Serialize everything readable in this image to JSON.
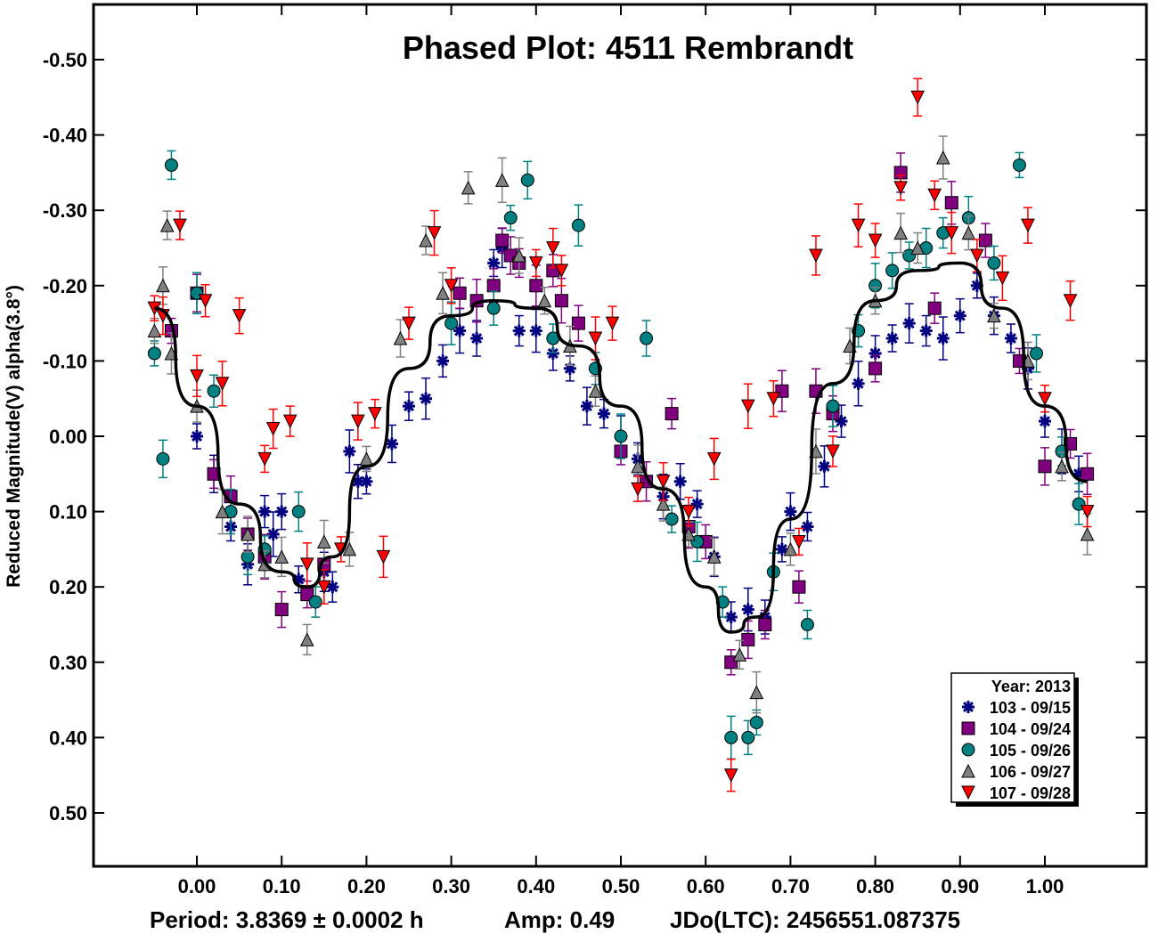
{
  "chart_data": {
    "type": "scatter",
    "title": "Phased Plot: 4511 Rembrandt",
    "xlabel": "",
    "ylabel": "Reduced Magnitude(V) alpha(3.8°)",
    "xlim": [
      -0.12,
      1.12
    ],
    "ylim": [
      -0.57,
      0.57
    ],
    "y_inverted": true,
    "grid": false,
    "x_ticks": [
      "0.00",
      "0.10",
      "0.20",
      "0.30",
      "0.40",
      "0.50",
      "0.60",
      "0.70",
      "0.80",
      "0.90",
      "1.00"
    ],
    "x_tick_values": [
      0.0,
      0.1,
      0.2,
      0.3,
      0.4,
      0.5,
      0.6,
      0.7,
      0.8,
      0.9,
      1.0
    ],
    "y_ticks": [
      "-0.50",
      "-0.40",
      "-0.30",
      "-0.20",
      "-0.10",
      "0.00",
      "0.10",
      "0.20",
      "0.30",
      "0.40",
      "0.50"
    ],
    "y_tick_values": [
      -0.5,
      -0.4,
      -0.3,
      -0.2,
      -0.1,
      0.0,
      0.1,
      0.2,
      0.3,
      0.4,
      0.5
    ],
    "legend": {
      "title": "Year: 2013",
      "position": "bottom-right",
      "entries": [
        {
          "label": "103 - 09/15",
          "marker": "asterisk",
          "color": "#000080"
        },
        {
          "label": "104 - 09/24",
          "marker": "square",
          "color": "#800080"
        },
        {
          "label": "105 - 09/26",
          "marker": "circle",
          "color": "#008080"
        },
        {
          "label": "106 - 09/27",
          "marker": "triangle-up",
          "color": "#808080"
        },
        {
          "label": "107 - 09/28",
          "marker": "triangle-down",
          "color": "#ff0000"
        }
      ]
    },
    "fit_curve": {
      "color": "#000000",
      "x": [
        -0.05,
        0.0,
        0.05,
        0.1,
        0.13,
        0.16,
        0.2,
        0.25,
        0.3,
        0.35,
        0.4,
        0.45,
        0.5,
        0.55,
        0.6,
        0.63,
        0.66,
        0.7,
        0.75,
        0.8,
        0.85,
        0.9,
        0.95,
        1.0,
        1.05
      ],
      "y": [
        -0.17,
        -0.04,
        0.09,
        0.18,
        0.2,
        0.16,
        0.04,
        -0.09,
        -0.16,
        -0.18,
        -0.17,
        -0.12,
        -0.04,
        0.07,
        0.2,
        0.26,
        0.24,
        0.11,
        -0.07,
        -0.18,
        -0.22,
        -0.23,
        -0.17,
        -0.04,
        0.06
      ]
    },
    "series": [
      {
        "name": "103 - 09/15",
        "x": [
          0.0,
          0.02,
          0.04,
          0.06,
          0.08,
          0.09,
          0.1,
          0.12,
          0.15,
          0.16,
          0.18,
          0.19,
          0.2,
          0.23,
          0.25,
          0.27,
          0.29,
          0.31,
          0.33,
          0.35,
          0.36,
          0.38,
          0.4,
          0.42,
          0.44,
          0.46,
          0.48,
          0.5,
          0.52,
          0.55,
          0.57,
          0.59,
          0.61,
          0.63,
          0.65,
          0.67,
          0.69,
          0.7,
          0.72,
          0.74,
          0.76,
          0.78,
          0.8,
          0.82,
          0.84,
          0.86,
          0.88,
          0.9,
          0.92,
          0.94,
          0.96,
          0.98,
          1.0,
          1.02,
          1.04
        ],
        "y": [
          0.0,
          0.05,
          0.12,
          0.17,
          0.1,
          0.13,
          0.1,
          0.19,
          0.18,
          0.2,
          0.02,
          0.06,
          0.06,
          0.01,
          -0.04,
          -0.05,
          -0.1,
          -0.14,
          -0.13,
          -0.23,
          -0.25,
          -0.14,
          -0.14,
          -0.11,
          -0.09,
          -0.04,
          -0.03,
          0.0,
          0.03,
          0.08,
          0.06,
          0.09,
          0.16,
          0.24,
          0.23,
          0.24,
          0.15,
          0.1,
          0.12,
          0.04,
          -0.02,
          -0.07,
          -0.11,
          -0.13,
          -0.15,
          -0.14,
          -0.13,
          -0.16,
          -0.2,
          -0.16,
          -0.13,
          -0.09,
          -0.02,
          0.02,
          0.05
        ]
      },
      {
        "name": "104 - 09/24",
        "x": [
          -0.03,
          0.0,
          0.02,
          0.04,
          0.06,
          0.08,
          0.1,
          0.13,
          0.15,
          0.31,
          0.33,
          0.35,
          0.36,
          0.37,
          0.38,
          0.4,
          0.42,
          0.43,
          0.45,
          0.5,
          0.53,
          0.56,
          0.58,
          0.6,
          0.63,
          0.65,
          0.67,
          0.69,
          0.71,
          0.73,
          0.75,
          0.8,
          0.83,
          0.87,
          0.89,
          0.93,
          0.97,
          1.0,
          1.03,
          1.05
        ],
        "y": [
          -0.14,
          -0.19,
          0.05,
          0.08,
          0.13,
          0.16,
          0.23,
          0.21,
          0.17,
          -0.19,
          -0.18,
          -0.2,
          -0.26,
          -0.24,
          -0.23,
          -0.2,
          -0.22,
          -0.18,
          -0.15,
          0.02,
          0.06,
          -0.03,
          0.12,
          0.14,
          0.3,
          0.27,
          0.25,
          -0.06,
          0.2,
          -0.06,
          -0.03,
          -0.09,
          -0.35,
          -0.17,
          -0.31,
          -0.26,
          -0.1,
          0.04,
          0.01,
          0.05
        ]
      },
      {
        "name": "105 - 09/26",
        "x": [
          -0.05,
          -0.04,
          -0.03,
          0.0,
          0.02,
          0.04,
          0.06,
          0.08,
          0.12,
          0.14,
          0.3,
          0.35,
          0.37,
          0.39,
          0.42,
          0.45,
          0.47,
          0.5,
          0.53,
          0.56,
          0.59,
          0.62,
          0.63,
          0.65,
          0.66,
          0.68,
          0.72,
          0.75,
          0.78,
          0.8,
          0.82,
          0.84,
          0.86,
          0.88,
          0.91,
          0.94,
          0.97,
          0.99,
          1.02,
          1.04
        ],
        "y": [
          -0.11,
          0.03,
          -0.36,
          -0.19,
          -0.06,
          0.1,
          0.16,
          0.15,
          0.1,
          0.22,
          -0.15,
          -0.17,
          -0.29,
          -0.34,
          -0.13,
          -0.28,
          -0.09,
          0.0,
          -0.13,
          0.11,
          0.14,
          0.22,
          0.4,
          0.4,
          0.38,
          0.18,
          0.25,
          -0.04,
          -0.14,
          -0.2,
          -0.22,
          -0.24,
          -0.25,
          -0.27,
          -0.29,
          -0.23,
          -0.36,
          -0.11,
          0.02,
          0.09
        ]
      },
      {
        "name": "106 - 09/27",
        "x": [
          -0.05,
          -0.04,
          -0.035,
          -0.03,
          0.0,
          0.03,
          0.06,
          0.08,
          0.1,
          0.13,
          0.15,
          0.18,
          0.2,
          0.24,
          0.27,
          0.29,
          0.32,
          0.36,
          0.38,
          0.41,
          0.44,
          0.47,
          0.52,
          0.55,
          0.58,
          0.61,
          0.64,
          0.66,
          0.7,
          0.73,
          0.77,
          0.8,
          0.83,
          0.85,
          0.88,
          0.91,
          0.94,
          0.98,
          1.02,
          1.05
        ],
        "y": [
          -0.14,
          -0.2,
          -0.28,
          -0.11,
          -0.04,
          0.1,
          0.13,
          0.17,
          0.16,
          0.27,
          0.14,
          0.15,
          0.03,
          -0.13,
          -0.26,
          -0.19,
          -0.33,
          -0.34,
          -0.24,
          -0.18,
          -0.12,
          -0.06,
          0.04,
          0.09,
          0.13,
          0.16,
          0.29,
          0.34,
          0.15,
          0.02,
          -0.12,
          -0.18,
          -0.27,
          -0.25,
          -0.37,
          -0.27,
          -0.16,
          -0.1,
          0.04,
          0.13
        ]
      },
      {
        "name": "107 - 09/28",
        "x": [
          -0.05,
          -0.04,
          -0.02,
          0.0,
          0.01,
          0.03,
          0.05,
          0.08,
          0.09,
          0.11,
          0.13,
          0.15,
          0.17,
          0.19,
          0.21,
          0.22,
          0.25,
          0.28,
          0.3,
          0.4,
          0.42,
          0.43,
          0.47,
          0.49,
          0.52,
          0.55,
          0.58,
          0.61,
          0.63,
          0.65,
          0.68,
          0.71,
          0.73,
          0.75,
          0.78,
          0.8,
          0.83,
          0.85,
          0.87,
          0.89,
          0.92,
          0.95,
          0.98,
          1.0,
          1.03,
          1.05
        ],
        "y": [
          -0.17,
          -0.16,
          -0.28,
          -0.08,
          -0.18,
          -0.07,
          -0.16,
          0.03,
          -0.01,
          -0.02,
          0.17,
          0.2,
          0.15,
          -0.02,
          -0.03,
          0.16,
          -0.15,
          -0.27,
          -0.2,
          -0.23,
          -0.25,
          -0.22,
          -0.13,
          -0.15,
          0.07,
          0.06,
          0.1,
          0.03,
          0.45,
          -0.04,
          -0.05,
          0.14,
          -0.24,
          0.02,
          -0.28,
          -0.26,
          -0.33,
          -0.45,
          -0.32,
          -0.27,
          -0.24,
          -0.21,
          -0.28,
          -0.05,
          -0.18,
          0.1
        ]
      }
    ]
  },
  "footer": {
    "period": "Period: 3.8369 ± 0.0002 h",
    "amp": "Amp: 0.49",
    "jdo": "JDo(LTC): 2456551.087375"
  }
}
